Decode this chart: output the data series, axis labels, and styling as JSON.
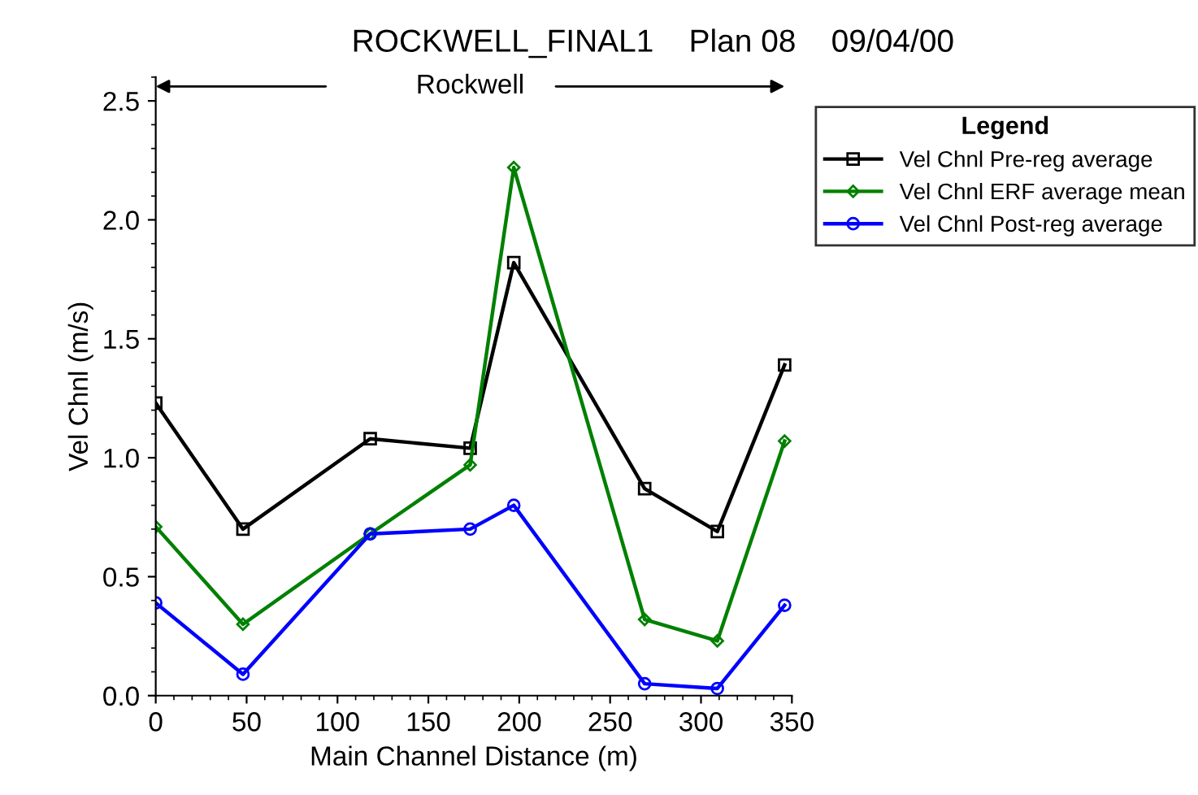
{
  "chart_data": {
    "type": "line",
    "title": "ROCKWELL_FINAL1    Plan 08    09/04/00",
    "xlabel": "Main Channel Distance (m)",
    "ylabel": "Vel Chnl (m/s)",
    "legend_title": "Legend",
    "x": [
      0,
      48,
      118,
      173,
      197,
      269,
      309,
      346
    ],
    "series": [
      {
        "name": "Vel Chnl Pre-reg average",
        "color": "#000000",
        "marker": "square",
        "values": [
          1.23,
          0.7,
          1.08,
          1.04,
          1.82,
          0.87,
          0.69,
          1.39
        ]
      },
      {
        "name": "Vel Chnl ERF average mean",
        "color": "#008000",
        "marker": "diamond",
        "values": [
          0.71,
          0.3,
          0.68,
          0.97,
          2.22,
          0.32,
          0.23,
          1.07
        ]
      },
      {
        "name": "Vel Chnl Post-reg average",
        "color": "#0000ff",
        "marker": "circle",
        "values": [
          0.39,
          0.09,
          0.68,
          0.7,
          0.8,
          0.05,
          0.03,
          0.38
        ]
      }
    ],
    "annotations": [
      "Rockwell"
    ],
    "xlim": [
      0,
      350
    ],
    "xticks": [
      0,
      50,
      100,
      150,
      200,
      250,
      300,
      350
    ],
    "ylim": [
      0,
      2.6
    ],
    "yticks": [
      {
        "value": 0,
        "label": "0.0"
      },
      0.5,
      {
        "value": 1,
        "label": "1.0"
      },
      1.5,
      {
        "value": 2,
        "label": "2.0"
      },
      2.5
    ],
    "grid": false,
    "legend": "right",
    "line_style": "solid"
  }
}
